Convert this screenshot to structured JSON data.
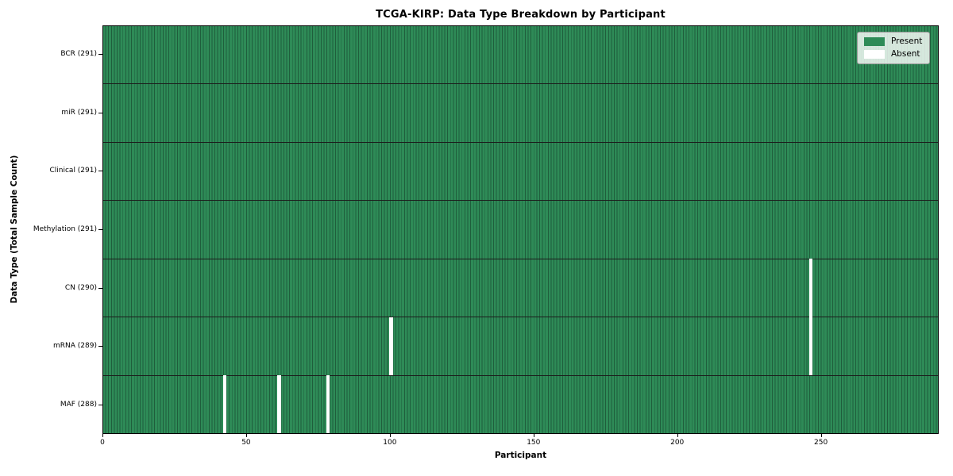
{
  "figure": {
    "title": "TCGA-KIRP: Data Type Breakdown by Participant",
    "xlabel": "Participant",
    "ylabel": "Data Type (Total Sample Count)"
  },
  "legend": {
    "items": [
      {
        "label": "Present",
        "color": "#2e8b57"
      },
      {
        "label": "Absent",
        "color": "#ffffff"
      }
    ]
  },
  "chart_data": {
    "type": "heatmap",
    "title": "TCGA-KIRP: Data Type Breakdown by Participant",
    "xlabel": "Participant",
    "ylabel": "Data Type (Total Sample Count)",
    "n_participants": 291,
    "x_ticks": [
      0,
      50,
      100,
      150,
      200,
      250
    ],
    "rows": [
      {
        "label": "BCR",
        "count": 291,
        "display": "BCR (291)",
        "absent_participants": []
      },
      {
        "label": "miR",
        "count": 291,
        "display": "miR (291)",
        "absent_participants": []
      },
      {
        "label": "Clinical",
        "count": 291,
        "display": "Clinical (291)",
        "absent_participants": []
      },
      {
        "label": "Methylation",
        "count": 291,
        "display": "Methylation (291)",
        "absent_participants": []
      },
      {
        "label": "CN",
        "count": 290,
        "display": "CN (290)",
        "absent_participants": [
          246
        ]
      },
      {
        "label": "mRNA",
        "count": 289,
        "display": "mRNA (289)",
        "absent_participants": [
          100,
          246
        ]
      },
      {
        "label": "MAF",
        "count": 288,
        "display": "MAF (288)",
        "absent_participants": [
          42,
          61,
          78
        ]
      }
    ],
    "colors": {
      "present": "#2e8b57",
      "absent": "#ffffff",
      "cell_edge": "#1f5e3c",
      "row_line": "#1c1c1c",
      "legend_bg": "rgba(255,255,255,0.8)",
      "legend_border": "#9a9a9a"
    },
    "legend_position": "upper right",
    "grid": false
  }
}
